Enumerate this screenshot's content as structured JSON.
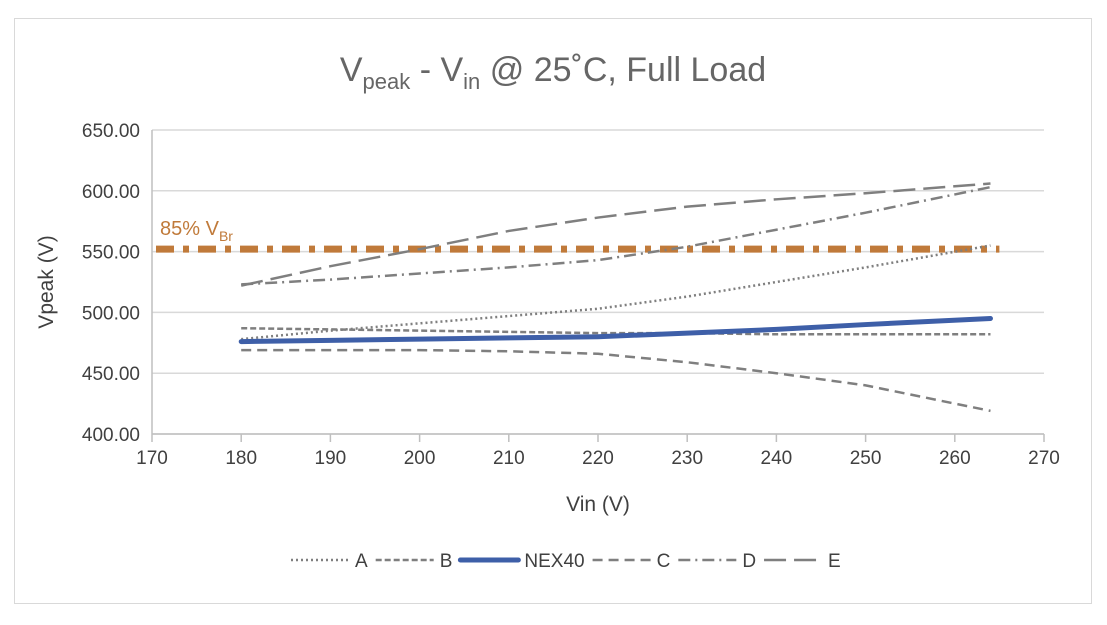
{
  "chart_data": {
    "type": "line",
    "title": {
      "main": "V",
      "sub1": "peak",
      "mid": " - V",
      "sub2": "in",
      "rest": " @ 25˚C, Full Load"
    },
    "xlabel": "Vin (V)",
    "ylabel": "Vpeak (V)",
    "xlim": [
      170,
      270
    ],
    "ylim": [
      400,
      650
    ],
    "xticks": [
      "170",
      "180",
      "190",
      "200",
      "210",
      "220",
      "230",
      "240",
      "250",
      "260",
      "270"
    ],
    "yticks": [
      "400.00",
      "450.00",
      "500.00",
      "550.00",
      "600.00",
      "650.00"
    ],
    "grid": "horizontal",
    "legend_position": "bottom",
    "x": [
      180,
      190,
      200,
      210,
      220,
      230,
      240,
      250,
      264
    ],
    "series": [
      {
        "name": "A",
        "style": "dotted",
        "color": "#7f7f7f",
        "values": [
          478,
          485,
          491,
          497,
          503,
          513,
          525,
          537,
          555
        ]
      },
      {
        "name": "B",
        "style": "short-dash",
        "color": "#7f7f7f",
        "values": [
          487,
          486,
          485,
          484,
          483,
          483,
          482,
          482,
          482
        ]
      },
      {
        "name": "NEX40",
        "style": "solid-thick",
        "color": "#3e5fa8",
        "values": [
          476,
          477,
          478,
          479,
          480,
          483,
          486,
          490,
          495
        ]
      },
      {
        "name": "C",
        "style": "dash",
        "color": "#7f7f7f",
        "values": [
          469,
          469,
          469,
          468,
          466,
          459,
          450,
          440,
          419
        ]
      },
      {
        "name": "D",
        "style": "dash-dot",
        "color": "#7f7f7f",
        "values": [
          523,
          527,
          532,
          537,
          543,
          554,
          568,
          582,
          603
        ]
      },
      {
        "name": "E",
        "style": "long-dash",
        "color": "#7f7f7f",
        "values": [
          522,
          538,
          552,
          567,
          578,
          587,
          593,
          598,
          606
        ]
      }
    ],
    "annotations": [
      {
        "text": "85% V",
        "sub": "Br",
        "value": 552,
        "color": "#c07a3a",
        "style": "dash-dot-thick",
        "x_range": [
          170,
          265
        ]
      }
    ]
  }
}
